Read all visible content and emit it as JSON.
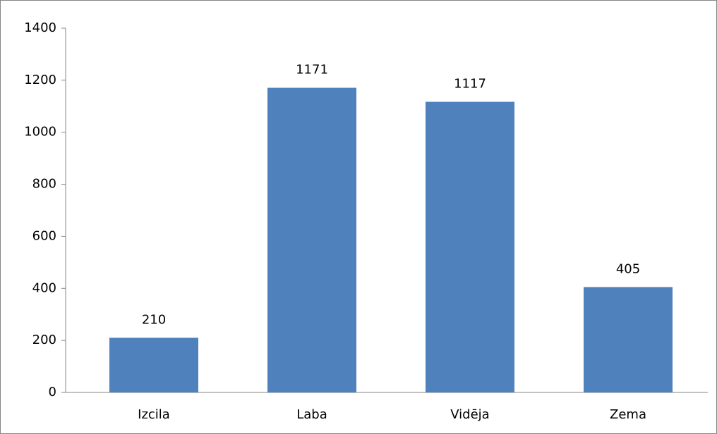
{
  "chart_data": {
    "type": "bar",
    "categories": [
      "Izcila",
      "Laba",
      "Vidēja",
      "Zema"
    ],
    "values": [
      210,
      1171,
      1117,
      405
    ],
    "color": "#4f81bd",
    "ylim": [
      0,
      1400
    ],
    "yticks": [
      0,
      200,
      400,
      600,
      800,
      1000,
      1200,
      1400
    ],
    "grid": false,
    "data_labels": true
  }
}
